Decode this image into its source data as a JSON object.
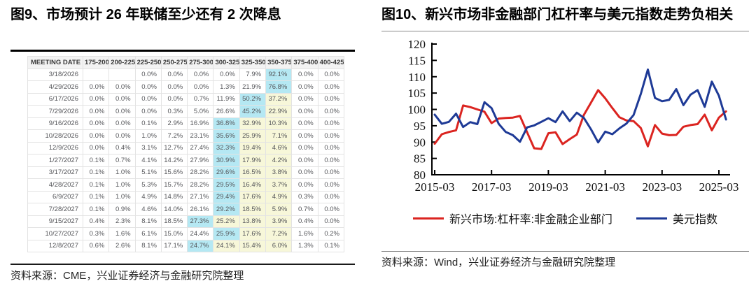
{
  "colors": {
    "cyan_highlight": "#b5e8f3",
    "yellow_highlight": "#f7f7d9",
    "red_line": "#db2420",
    "blue_line": "#1e3a96"
  },
  "figure9": {
    "title": "图9、市场预计 26 年联储至少还有 2 次降息",
    "source": "资料来源：CME，兴业证券经济与金融研究院整理",
    "table": {
      "columns": [
        "MEETING DATE",
        "175-200",
        "200-225",
        "225-250",
        "250-275",
        "275-300",
        "300-325",
        "325-350",
        "350-375",
        "375-400",
        "400-425"
      ],
      "rows": [
        {
          "date": "3/18/2026",
          "values": [
            "",
            "",
            "0.0%",
            "0.0%",
            "0.0%",
            "0.0%",
            "7.9%",
            "92.1%",
            "0.0%",
            "0.0%"
          ],
          "cyan": 7,
          "yellow": []
        },
        {
          "date": "4/29/2026",
          "values": [
            "0.0%",
            "0.0%",
            "0.0%",
            "0.0%",
            "0.0%",
            "1.3%",
            "21.9%",
            "76.8%",
            "0.0%",
            "0.0%"
          ],
          "cyan": 7,
          "yellow": []
        },
        {
          "date": "6/17/2026",
          "values": [
            "0.0%",
            "0.0%",
            "0.0%",
            "0.0%",
            "0.7%",
            "11.9%",
            "50.2%",
            "37.2%",
            "0.0%",
            "0.0%"
          ],
          "cyan": 6,
          "yellow": [
            7
          ]
        },
        {
          "date": "7/29/2026",
          "values": [
            "0.0%",
            "0.0%",
            "0.0%",
            "0.3%",
            "5.0%",
            "26.6%",
            "45.2%",
            "22.9%",
            "0.0%",
            "0.0%"
          ],
          "cyan": 6,
          "yellow": [
            7
          ]
        },
        {
          "date": "9/16/2026",
          "values": [
            "0.0%",
            "0.0%",
            "0.1%",
            "2.9%",
            "16.9%",
            "36.8%",
            "32.9%",
            "10.3%",
            "0.0%",
            "0.0%"
          ],
          "cyan": 5,
          "yellow": [
            6,
            7
          ]
        },
        {
          "date": "10/28/2026",
          "values": [
            "0.0%",
            "0.0%",
            "1.0%",
            "7.2%",
            "23.1%",
            "35.6%",
            "25.9%",
            "7.1%",
            "0.0%",
            "0.0%"
          ],
          "cyan": 5,
          "yellow": [
            6,
            7
          ]
        },
        {
          "date": "12/9/2026",
          "values": [
            "0.0%",
            "0.4%",
            "3.1%",
            "12.7%",
            "27.4%",
            "32.3%",
            "19.4%",
            "4.6%",
            "0.0%",
            "0.0%"
          ],
          "cyan": 5,
          "yellow": [
            6,
            7
          ]
        },
        {
          "date": "1/27/2027",
          "values": [
            "0.1%",
            "0.7%",
            "4.1%",
            "14.2%",
            "27.9%",
            "30.9%",
            "17.9%",
            "4.2%",
            "0.0%",
            "0.0%"
          ],
          "cyan": 5,
          "yellow": [
            6,
            7
          ]
        },
        {
          "date": "3/17/2027",
          "values": [
            "0.1%",
            "1.0%",
            "5.1%",
            "15.6%",
            "28.2%",
            "29.6%",
            "16.5%",
            "3.8%",
            "0.0%",
            "0.0%"
          ],
          "cyan": 5,
          "yellow": [
            6,
            7
          ]
        },
        {
          "date": "4/28/2027",
          "values": [
            "0.1%",
            "1.0%",
            "5.3%",
            "15.7%",
            "28.2%",
            "29.5%",
            "16.4%",
            "3.7%",
            "0.0%",
            "0.0%"
          ],
          "cyan": 5,
          "yellow": [
            6,
            7
          ]
        },
        {
          "date": "6/9/2027",
          "values": [
            "0.1%",
            "1.0%",
            "4.9%",
            "14.8%",
            "27.1%",
            "29.4%",
            "17.6%",
            "4.9%",
            "0.3%",
            "0.0%"
          ],
          "cyan": 5,
          "yellow": [
            6,
            7
          ]
        },
        {
          "date": "7/28/2027",
          "values": [
            "0.1%",
            "0.9%",
            "4.6%",
            "14.0%",
            "26.1%",
            "29.2%",
            "18.5%",
            "5.9%",
            "0.7%",
            "0.0%"
          ],
          "cyan": 5,
          "yellow": [
            6,
            7
          ]
        },
        {
          "date": "9/15/2027",
          "values": [
            "0.4%",
            "2.3%",
            "8.1%",
            "18.5%",
            "27.3%",
            "25.2%",
            "13.8%",
            "3.9%",
            "0.4%",
            "0.0%"
          ],
          "cyan": 4,
          "yellow": [
            5,
            6,
            7
          ]
        },
        {
          "date": "10/27/2027",
          "values": [
            "0.3%",
            "1.6%",
            "6.1%",
            "15.0%",
            "24.4%",
            "25.9%",
            "17.6%",
            "7.2%",
            "1.6%",
            "0.2%"
          ],
          "cyan": 5,
          "yellow": [
            6,
            7
          ]
        },
        {
          "date": "12/8/2027",
          "values": [
            "0.6%",
            "2.6%",
            "8.1%",
            "17.1%",
            "24.7%",
            "24.1%",
            "15.4%",
            "6.0%",
            "1.3%",
            "0.1%"
          ],
          "cyan": 4,
          "yellow": [
            5,
            6,
            7
          ]
        }
      ]
    }
  },
  "figure10": {
    "title": "图10、新兴市场非金融部门杠杆率与美元指数走势负相关",
    "source": "资料来源：Wind，兴业证券经济与金融研究院整理"
  },
  "chart_data": {
    "type": "line",
    "title": "",
    "xlabel": "",
    "ylabel": "",
    "ylim": [
      80,
      120
    ],
    "ytick_step": 5,
    "grid": false,
    "legend_position": "bottom",
    "xticks": [
      "2015-03",
      "2017-03",
      "2019-03",
      "2021-03",
      "2023-03",
      "2025-03"
    ],
    "x": [
      "2015-03",
      "2015-06",
      "2015-09",
      "2015-12",
      "2016-03",
      "2016-06",
      "2016-09",
      "2016-12",
      "2017-03",
      "2017-06",
      "2017-09",
      "2017-12",
      "2018-03",
      "2018-06",
      "2018-09",
      "2018-12",
      "2019-03",
      "2019-06",
      "2019-09",
      "2019-12",
      "2020-03",
      "2020-06",
      "2020-09",
      "2020-12",
      "2021-03",
      "2021-06",
      "2021-09",
      "2021-12",
      "2022-03",
      "2022-06",
      "2022-09",
      "2022-12",
      "2023-03",
      "2023-06",
      "2023-09",
      "2023-12",
      "2024-03",
      "2024-06",
      "2024-09",
      "2024-12",
      "2025-03",
      "2025-06"
    ],
    "series": [
      {
        "name": "新兴市场:杠杆率:非金融企业部门",
        "color_key": "red_line",
        "values": [
          89.5,
          92.4,
          93.1,
          93.6,
          101.2,
          100.7,
          100.0,
          99.3,
          95.8,
          97.2,
          97.4,
          97.5,
          98.0,
          93.0,
          88.1,
          87.9,
          92.7,
          93.0,
          89.4,
          90.9,
          92.3,
          98.3,
          102.1,
          105.9,
          103.4,
          100.4,
          97.6,
          96.6,
          96.4,
          94.3,
          88.7,
          95.2,
          92.6,
          92.1,
          92.2,
          94.7,
          95.2,
          95.5,
          98.4,
          93.6,
          97.5,
          99.4
        ]
      },
      {
        "name": "美元指数",
        "color_key": "blue_line",
        "values": [
          98.4,
          95.6,
          96.2,
          98.7,
          94.6,
          96.1,
          95.5,
          102.2,
          100.4,
          95.6,
          93.1,
          92.1,
          90.1,
          94.5,
          95.1,
          96.2,
          97.3,
          96.1,
          99.4,
          96.4,
          99.0,
          97.4,
          93.9,
          89.9,
          93.2,
          92.4,
          94.2,
          95.7,
          98.3,
          104.7,
          112.2,
          103.5,
          102.5,
          102.9,
          106.2,
          101.3,
          104.5,
          105.9,
          100.8,
          108.5,
          104.2,
          96.9
        ]
      }
    ]
  }
}
